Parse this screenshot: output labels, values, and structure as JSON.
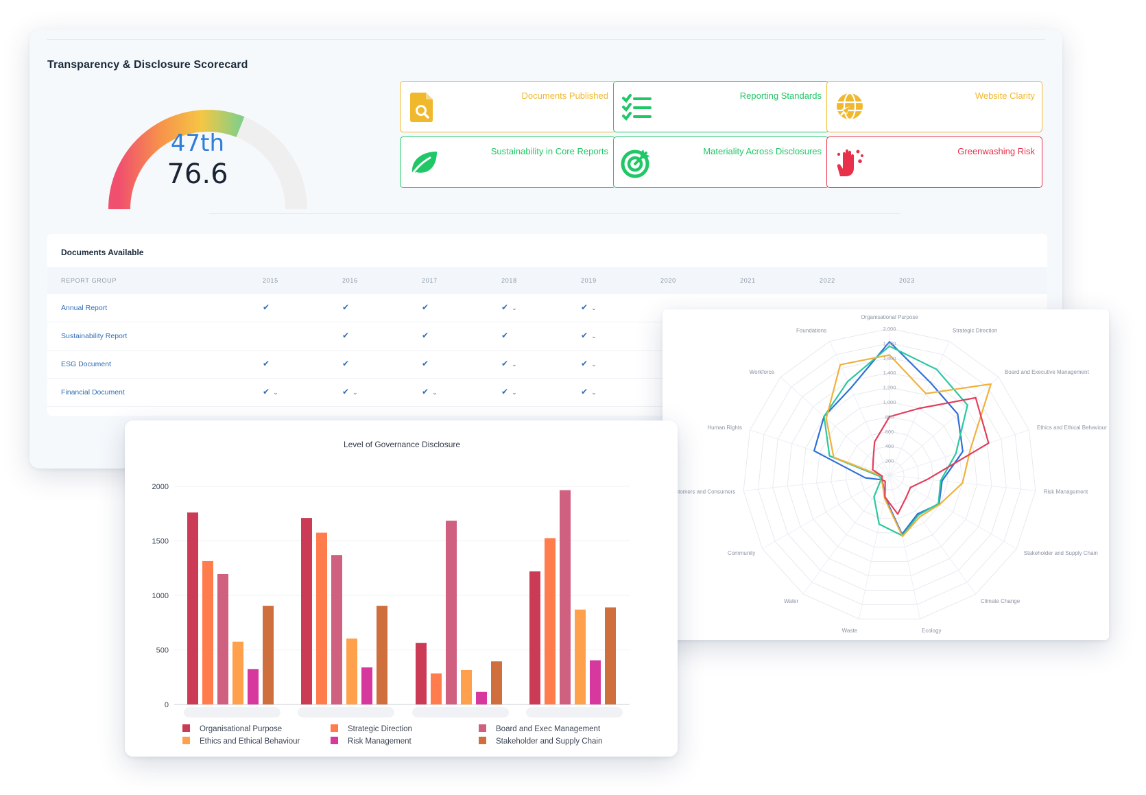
{
  "scorecard": {
    "title": "Transparency & Disclosure Scorecard",
    "rank": "47th",
    "score": "76.6",
    "gauge_fill_fraction": 0.62,
    "cards": [
      {
        "label": "Documents Published",
        "color": "#f0b82d",
        "icon": "document-search-icon"
      },
      {
        "label": "Reporting Standards",
        "color": "#20c766",
        "icon": "checklist-icon"
      },
      {
        "label": "Website Clarity",
        "color": "#f0b82d",
        "icon": "globe-cursor-icon"
      },
      {
        "label": "Sustainability in Core Reports",
        "color": "#20c766",
        "icon": "leaf-icon"
      },
      {
        "label": "Materiality Across Disclosures",
        "color": "#20c766",
        "icon": "target-icon"
      },
      {
        "label": "Greenwashing Risk",
        "color": "#e8304a",
        "icon": "hand-wash-icon"
      }
    ]
  },
  "documents": {
    "title": "Documents Available",
    "header": "REPORT GROUP",
    "years": [
      "2015",
      "2016",
      "2017",
      "2018",
      "2019",
      "2020",
      "2021",
      "2022",
      "2023"
    ],
    "check": "✔",
    "chevron": "⌄",
    "rows": [
      {
        "name": "Annual Report",
        "cells": [
          "✔",
          "✔",
          "✔",
          "✔ ⌄",
          "✔ ⌄"
        ]
      },
      {
        "name": "Sustainability Report",
        "cells": [
          "",
          "✔",
          "✔",
          "✔",
          "✔ ⌄"
        ]
      },
      {
        "name": "ESG Document",
        "cells": [
          "✔",
          "✔",
          "✔",
          "✔ ⌄",
          "✔ ⌄"
        ]
      },
      {
        "name": "Financial Document",
        "cells": [
          "✔ ⌄",
          "✔ ⌄",
          "✔ ⌄",
          "✔ ⌄",
          "✔ ⌄"
        ]
      }
    ]
  },
  "chart_data": [
    {
      "type": "bar",
      "title": "Level of Governance Disclosure",
      "categories": [
        "",
        "",
        "",
        ""
      ],
      "ylim": [
        0,
        2000
      ],
      "yticks": [
        0,
        500,
        1000,
        1500,
        2000
      ],
      "legend_position": "bottom",
      "grid": true,
      "series": [
        {
          "name": "Organisational Purpose",
          "color": "#cc3b55",
          "values": [
            1760,
            1710,
            565,
            1220
          ]
        },
        {
          "name": "Strategic Direction",
          "color": "#ff7c4d",
          "values": [
            1315,
            1575,
            285,
            1525
          ]
        },
        {
          "name": "Board and Exec Management",
          "color": "#cf6080",
          "values": [
            1195,
            1370,
            1685,
            1965
          ]
        },
        {
          "name": "Ethics and Ethical Behaviour",
          "color": "#ffa04d",
          "values": [
            575,
            605,
            315,
            870
          ]
        },
        {
          "name": "Risk Management",
          "color": "#d6389e",
          "values": [
            325,
            340,
            115,
            405
          ]
        },
        {
          "name": "Stakeholder and Supply Chain",
          "color": "#cf6f3e",
          "values": [
            905,
            905,
            395,
            890
          ]
        }
      ]
    },
    {
      "type": "radar",
      "axes": [
        "Organisational Purpose",
        "Strategic Direction",
        "Board and Executive Management",
        "Ethics and Ethical Behaviour",
        "Risk Management",
        "Stakeholder and Supply Chain",
        "Climate Change",
        "Ecology",
        "Waste",
        "Water",
        "Community",
        "Customers and Consumers",
        "Human Rights",
        "Workforce",
        "Foundations"
      ],
      "rmax": 2000,
      "ticks": [
        "200",
        "400",
        "600",
        "800",
        "1,000",
        "1,200",
        "1,400",
        "1,600",
        "1,800",
        "2,000"
      ],
      "grid": true,
      "series": [
        {
          "color": "#2f6fd8",
          "values": [
            1820,
            1380,
            1250,
            1050,
            720,
            780,
            650,
            820,
            300,
            150,
            120,
            330,
            1080,
            1200,
            1300
          ]
        },
        {
          "color": "#2bc7a0",
          "values": [
            1760,
            1580,
            1430,
            950,
            700,
            770,
            670,
            840,
            680,
            360,
            140,
            130,
            860,
            1200,
            1400
          ]
        },
        {
          "color": "#f0b13c",
          "values": [
            1640,
            1220,
            1860,
            1160,
            1000,
            790,
            700,
            850,
            320,
            160,
            130,
            100,
            800,
            1160,
            1650
          ]
        },
        {
          "color": "#e23d5c",
          "values": [
            800,
            1000,
            1580,
            1420,
            520,
            330,
            380,
            540,
            300,
            100,
            120,
            100,
            240,
            300,
            500
          ]
        }
      ]
    }
  ]
}
